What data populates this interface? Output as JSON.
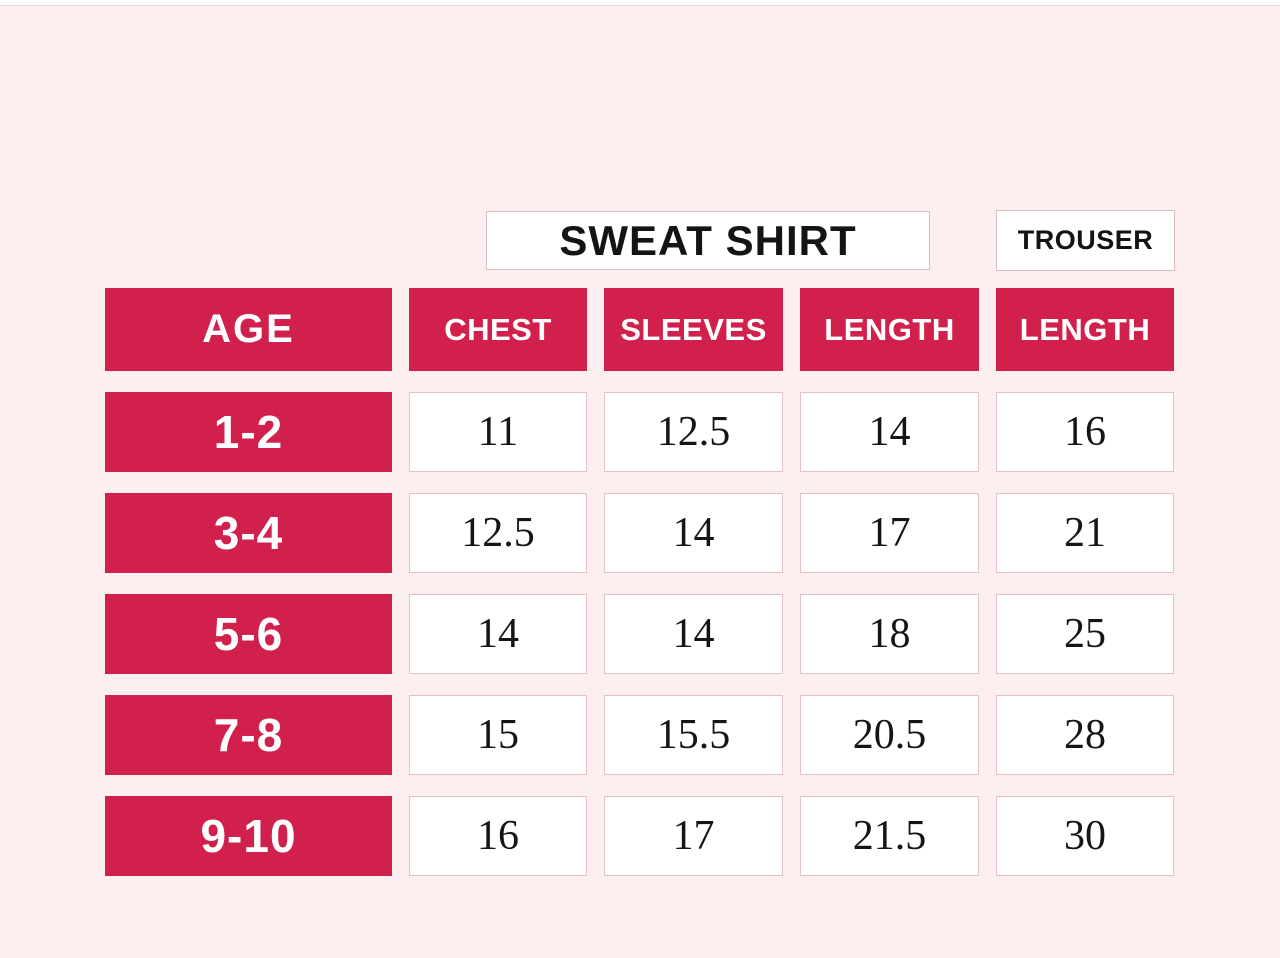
{
  "colors": {
    "background": "#fdeef0",
    "accent_red": "#d2204c",
    "cell_border": "#e7c0c7",
    "box_border": "#d9bcc2",
    "text_dark": "#141414",
    "header_text": "#ffffff"
  },
  "group_headers": {
    "sweatshirt": "SWEAT SHIRT",
    "trouser": "TROUSER"
  },
  "table": {
    "age_header": "AGE",
    "columns": [
      "CHEST",
      "SLEEVES",
      "LENGTH",
      "LENGTH"
    ],
    "rows": [
      {
        "age": "1-2",
        "values": [
          "11",
          "12.5",
          "14",
          "16"
        ]
      },
      {
        "age": "3-4",
        "values": [
          "12.5",
          "14",
          "17",
          "21"
        ]
      },
      {
        "age": "5-6",
        "values": [
          "14",
          "14",
          "18",
          "25"
        ]
      },
      {
        "age": "7-8",
        "values": [
          "15",
          "15.5",
          "20.5",
          "28"
        ]
      },
      {
        "age": "9-10",
        "values": [
          "16",
          "17",
          "21.5",
          "30"
        ]
      }
    ]
  },
  "chart_data": {
    "type": "table",
    "title": "",
    "column_groups": [
      {
        "label": "SWEAT SHIRT",
        "columns": [
          "CHEST",
          "SLEEVES",
          "LENGTH"
        ]
      },
      {
        "label": "TROUSER",
        "columns": [
          "LENGTH"
        ]
      }
    ],
    "columns": [
      "AGE",
      "CHEST",
      "SLEEVES",
      "LENGTH",
      "LENGTH"
    ],
    "rows": [
      [
        "1-2",
        11,
        12.5,
        14,
        16
      ],
      [
        "3-4",
        12.5,
        14,
        17,
        21
      ],
      [
        "5-6",
        14,
        14,
        18,
        25
      ],
      [
        "7-8",
        15,
        15.5,
        20.5,
        28
      ],
      [
        "9-10",
        16,
        17,
        21.5,
        30
      ]
    ]
  }
}
